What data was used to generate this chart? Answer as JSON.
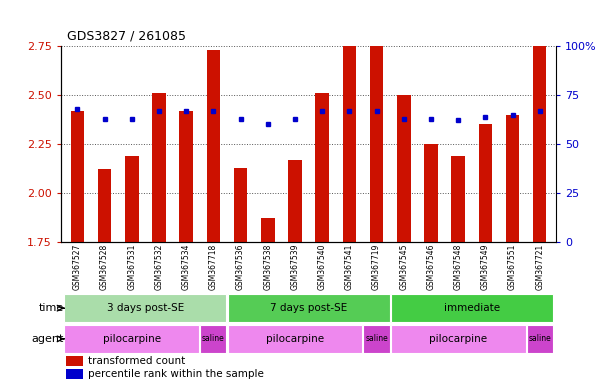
{
  "title": "GDS3827 / 261085",
  "samples": [
    "GSM367527",
    "GSM367528",
    "GSM367531",
    "GSM367532",
    "GSM367534",
    "GSM367718",
    "GSM367536",
    "GSM367538",
    "GSM367539",
    "GSM367540",
    "GSM367541",
    "GSM367719",
    "GSM367545",
    "GSM367546",
    "GSM367548",
    "GSM367549",
    "GSM367551",
    "GSM367721"
  ],
  "red_values": [
    2.42,
    2.12,
    2.19,
    2.51,
    2.42,
    2.73,
    2.13,
    1.87,
    2.17,
    2.51,
    2.8,
    2.86,
    2.5,
    2.25,
    2.19,
    2.35,
    2.4,
    2.86
  ],
  "blue_values": [
    68,
    63,
    63,
    67,
    67,
    67,
    63,
    60,
    63,
    67,
    67,
    67,
    63,
    63,
    62,
    64,
    65,
    67
  ],
  "ymin": 1.75,
  "ymax": 2.75,
  "yticks": [
    1.75,
    2.0,
    2.25,
    2.5,
    2.75
  ],
  "right_yticks": [
    0,
    25,
    50,
    75,
    100
  ],
  "right_ytick_labels": [
    "0",
    "25",
    "50",
    "75",
    "100%"
  ],
  "bar_color": "#cc1100",
  "dot_color": "#0000cc",
  "left_tick_color": "#cc1100",
  "right_tick_color": "#0000cc",
  "time_groups": [
    {
      "label": "3 days post-SE",
      "start": 0,
      "end": 5,
      "color": "#aaddaa"
    },
    {
      "label": "7 days post-SE",
      "start": 6,
      "end": 11,
      "color": "#55cc55"
    },
    {
      "label": "immediate",
      "start": 12,
      "end": 17,
      "color": "#44cc44"
    }
  ],
  "agent_groups": [
    {
      "label": "pilocarpine",
      "start": 0,
      "end": 4,
      "color": "#ee88ee"
    },
    {
      "label": "saline",
      "start": 5,
      "end": 5,
      "color": "#cc44cc"
    },
    {
      "label": "pilocarpine",
      "start": 6,
      "end": 10,
      "color": "#ee88ee"
    },
    {
      "label": "saline",
      "start": 11,
      "end": 11,
      "color": "#cc44cc"
    },
    {
      "label": "pilocarpine",
      "start": 12,
      "end": 16,
      "color": "#ee88ee"
    },
    {
      "label": "saline",
      "start": 17,
      "end": 17,
      "color": "#cc44cc"
    }
  ],
  "legend_items": [
    {
      "label": "transformed count",
      "color": "#cc1100"
    },
    {
      "label": "percentile rank within the sample",
      "color": "#0000cc"
    }
  ],
  "background_color": "#ffffff",
  "grid_color": "#555555"
}
